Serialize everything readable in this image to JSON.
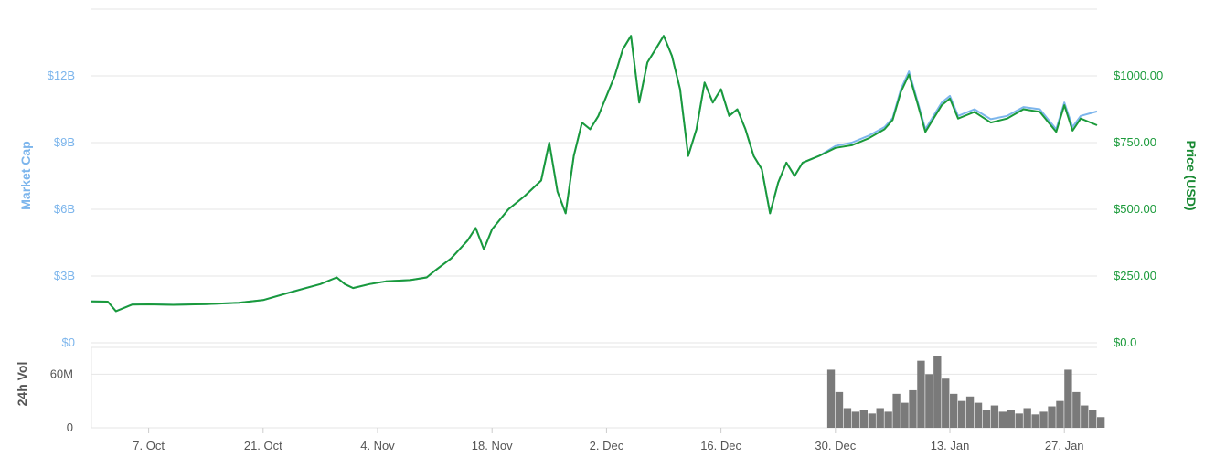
{
  "chart_data": {
    "type": "line",
    "title": "",
    "x_axis": {
      "type": "date",
      "range": [
        "2016-09-30",
        "2017-01-31"
      ],
      "ticks": [
        {
          "date": "2016-10-07",
          "label": "7. Oct"
        },
        {
          "date": "2016-10-21",
          "label": "21. Oct"
        },
        {
          "date": "2016-11-04",
          "label": "4. Nov"
        },
        {
          "date": "2016-11-18",
          "label": "18. Nov"
        },
        {
          "date": "2016-12-02",
          "label": "2. Dec"
        },
        {
          "date": "2016-12-16",
          "label": "16. Dec"
        },
        {
          "date": "2016-12-30",
          "label": "30. Dec"
        },
        {
          "date": "2017-01-13",
          "label": "13. Jan"
        },
        {
          "date": "2017-01-27",
          "label": "27. Jan"
        }
      ]
    },
    "y_axis_left": {
      "label": "Market Cap",
      "range": [
        0,
        15000000000
      ],
      "ticks": [
        {
          "value": 0,
          "label": "$0"
        },
        {
          "value": 3000000000,
          "label": "$3B"
        },
        {
          "value": 6000000000,
          "label": "$6B"
        },
        {
          "value": 9000000000,
          "label": "$9B"
        },
        {
          "value": 12000000000,
          "label": "$12B"
        }
      ]
    },
    "y_axis_right": {
      "label": "Price (USD)",
      "range": [
        0,
        1250
      ],
      "ticks": [
        {
          "value": 0,
          "label": "$0.0"
        },
        {
          "value": 250,
          "label": "$250.00"
        },
        {
          "value": 500,
          "label": "$500.00"
        },
        {
          "value": 750,
          "label": "$750.00"
        },
        {
          "value": 1000,
          "label": "$1000.00"
        }
      ]
    },
    "volume_axis": {
      "label": "24h Vol",
      "range": [
        0,
        90000000
      ],
      "ticks": [
        {
          "value": 0,
          "label": "0"
        },
        {
          "value": 60000000,
          "label": "60M"
        }
      ]
    },
    "grid": true,
    "legend": "none",
    "series": [
      {
        "key": "market_cap",
        "axis": "left",
        "color": "#7cb5ec",
        "points": [
          [
            "2016-09-30",
            1860000000
          ],
          [
            "2016-10-02",
            1850000000
          ],
          [
            "2016-10-03",
            1420000000
          ],
          [
            "2016-10-05",
            1720000000
          ],
          [
            "2016-10-07",
            1730000000
          ],
          [
            "2016-10-10",
            1710000000
          ],
          [
            "2016-10-14",
            1740000000
          ],
          [
            "2016-10-18",
            1800000000
          ],
          [
            "2016-10-21",
            1920000000
          ],
          [
            "2016-10-24",
            2240000000
          ],
          [
            "2016-10-26",
            2440000000
          ],
          [
            "2016-10-28",
            2640000000
          ],
          [
            "2016-10-30",
            2940000000
          ],
          [
            "2016-10-31",
            2640000000
          ],
          [
            "2016-11-01",
            2460000000
          ],
          [
            "2016-11-03",
            2640000000
          ],
          [
            "2016-11-05",
            2760000000
          ],
          [
            "2016-11-08",
            2820000000
          ],
          [
            "2016-11-10",
            2940000000
          ],
          [
            "2016-11-11",
            3240000000
          ],
          [
            "2016-11-13",
            3800000000
          ],
          [
            "2016-11-15",
            4600000000
          ],
          [
            "2016-11-16",
            5160000000
          ],
          [
            "2016-11-17",
            4200000000
          ],
          [
            "2016-11-18",
            5100000000
          ],
          [
            "2016-11-20",
            6000000000
          ],
          [
            "2016-11-22",
            6600000000
          ],
          [
            "2016-11-24",
            7300000000
          ],
          [
            "2016-11-25",
            9000000000
          ],
          [
            "2016-11-26",
            6800000000
          ],
          [
            "2016-11-27",
            5820000000
          ],
          [
            "2016-11-28",
            8400000000
          ],
          [
            "2016-11-29",
            9900000000
          ],
          [
            "2016-11-30",
            9600000000
          ],
          [
            "2016-12-01",
            10200000000
          ],
          [
            "2016-12-03",
            12000000000
          ],
          [
            "2016-12-04",
            13200000000
          ],
          [
            "2016-12-05",
            13800000000
          ],
          [
            "2016-12-06",
            10800000000
          ],
          [
            "2016-12-07",
            12600000000
          ],
          [
            "2016-12-08",
            13200000000
          ],
          [
            "2016-12-09",
            13800000000
          ],
          [
            "2016-12-10",
            12900000000
          ],
          [
            "2016-12-11",
            11400000000
          ],
          [
            "2016-12-12",
            8400000000
          ],
          [
            "2016-12-13",
            9600000000
          ],
          [
            "2016-12-14",
            11700000000
          ],
          [
            "2016-12-15",
            10800000000
          ],
          [
            "2016-12-16",
            11400000000
          ],
          [
            "2016-12-17",
            10200000000
          ],
          [
            "2016-12-18",
            10500000000
          ],
          [
            "2016-12-19",
            9600000000
          ],
          [
            "2016-12-20",
            8400000000
          ],
          [
            "2016-12-21",
            7800000000
          ],
          [
            "2016-12-22",
            5820000000
          ],
          [
            "2016-12-23",
            7200000000
          ],
          [
            "2016-12-24",
            8100000000
          ],
          [
            "2016-12-25",
            7500000000
          ],
          [
            "2016-12-26",
            8100000000
          ],
          [
            "2016-12-28",
            8400000000
          ],
          [
            "2016-12-30",
            8850000000
          ],
          [
            "2017-01-01",
            9000000000
          ],
          [
            "2017-01-03",
            9300000000
          ],
          [
            "2017-01-05",
            9700000000
          ],
          [
            "2017-01-06",
            10100000000
          ],
          [
            "2017-01-07",
            11400000000
          ],
          [
            "2017-01-08",
            12200000000
          ],
          [
            "2017-01-09",
            10900000000
          ],
          [
            "2017-01-10",
            9600000000
          ],
          [
            "2017-01-11",
            10200000000
          ],
          [
            "2017-01-12",
            10800000000
          ],
          [
            "2017-01-13",
            11100000000
          ],
          [
            "2017-01-14",
            10200000000
          ],
          [
            "2017-01-16",
            10500000000
          ],
          [
            "2017-01-18",
            10050000000
          ],
          [
            "2017-01-20",
            10200000000
          ],
          [
            "2017-01-22",
            10600000000
          ],
          [
            "2017-01-24",
            10500000000
          ],
          [
            "2017-01-26",
            9600000000
          ],
          [
            "2017-01-27",
            10800000000
          ],
          [
            "2017-01-28",
            9700000000
          ],
          [
            "2017-01-29",
            10200000000
          ],
          [
            "2017-01-31",
            10400000000
          ]
        ]
      },
      {
        "key": "price",
        "axis": "right",
        "color": "#1a9a3a",
        "points": [
          [
            "2016-09-30",
            155
          ],
          [
            "2016-10-02",
            154
          ],
          [
            "2016-10-03",
            118
          ],
          [
            "2016-10-05",
            143
          ],
          [
            "2016-10-07",
            144
          ],
          [
            "2016-10-10",
            142
          ],
          [
            "2016-10-14",
            145
          ],
          [
            "2016-10-18",
            150
          ],
          [
            "2016-10-21",
            160
          ],
          [
            "2016-10-24",
            186
          ],
          [
            "2016-10-26",
            203
          ],
          [
            "2016-10-28",
            220
          ],
          [
            "2016-10-30",
            245
          ],
          [
            "2016-10-31",
            220
          ],
          [
            "2016-11-01",
            205
          ],
          [
            "2016-11-03",
            220
          ],
          [
            "2016-11-05",
            230
          ],
          [
            "2016-11-08",
            235
          ],
          [
            "2016-11-10",
            245
          ],
          [
            "2016-11-11",
            270
          ],
          [
            "2016-11-13",
            316
          ],
          [
            "2016-11-15",
            383
          ],
          [
            "2016-11-16",
            430
          ],
          [
            "2016-11-17",
            350
          ],
          [
            "2016-11-18",
            425
          ],
          [
            "2016-11-20",
            500
          ],
          [
            "2016-11-22",
            550
          ],
          [
            "2016-11-24",
            608
          ],
          [
            "2016-11-25",
            750
          ],
          [
            "2016-11-26",
            566
          ],
          [
            "2016-11-27",
            485
          ],
          [
            "2016-11-28",
            700
          ],
          [
            "2016-11-29",
            825
          ],
          [
            "2016-11-30",
            800
          ],
          [
            "2016-12-01",
            850
          ],
          [
            "2016-12-03",
            1000
          ],
          [
            "2016-12-04",
            1100
          ],
          [
            "2016-12-05",
            1150
          ],
          [
            "2016-12-06",
            900
          ],
          [
            "2016-12-07",
            1050
          ],
          [
            "2016-12-08",
            1100
          ],
          [
            "2016-12-09",
            1150
          ],
          [
            "2016-12-10",
            1075
          ],
          [
            "2016-12-11",
            950
          ],
          [
            "2016-12-12",
            700
          ],
          [
            "2016-12-13",
            800
          ],
          [
            "2016-12-14",
            975
          ],
          [
            "2016-12-15",
            900
          ],
          [
            "2016-12-16",
            950
          ],
          [
            "2016-12-17",
            850
          ],
          [
            "2016-12-18",
            875
          ],
          [
            "2016-12-19",
            800
          ],
          [
            "2016-12-20",
            700
          ],
          [
            "2016-12-21",
            650
          ],
          [
            "2016-12-22",
            485
          ],
          [
            "2016-12-23",
            600
          ],
          [
            "2016-12-24",
            675
          ],
          [
            "2016-12-25",
            625
          ],
          [
            "2016-12-26",
            675
          ],
          [
            "2016-12-28",
            700
          ],
          [
            "2016-12-30",
            730
          ],
          [
            "2017-01-01",
            740
          ],
          [
            "2017-01-03",
            765
          ],
          [
            "2017-01-05",
            800
          ],
          [
            "2017-01-06",
            835
          ],
          [
            "2017-01-07",
            940
          ],
          [
            "2017-01-08",
            1005
          ],
          [
            "2017-01-09",
            900
          ],
          [
            "2017-01-10",
            790
          ],
          [
            "2017-01-11",
            840
          ],
          [
            "2017-01-12",
            890
          ],
          [
            "2017-01-13",
            915
          ],
          [
            "2017-01-14",
            840
          ],
          [
            "2017-01-16",
            865
          ],
          [
            "2017-01-18",
            825
          ],
          [
            "2017-01-20",
            840
          ],
          [
            "2017-01-22",
            875
          ],
          [
            "2017-01-24",
            865
          ],
          [
            "2017-01-26",
            790
          ],
          [
            "2017-01-27",
            890
          ],
          [
            "2017-01-28",
            795
          ],
          [
            "2017-01-29",
            840
          ],
          [
            "2017-01-31",
            815
          ]
        ]
      }
    ],
    "volume": {
      "color": "#7a7a7a",
      "start_date": "2016-12-29",
      "points": [
        [
          "2016-12-29",
          65000000
        ],
        [
          "2016-12-30",
          40000000
        ],
        [
          "2016-12-31",
          22000000
        ],
        [
          "2017-01-01",
          18000000
        ],
        [
          "2017-01-02",
          20000000
        ],
        [
          "2017-01-03",
          16000000
        ],
        [
          "2017-01-04",
          22000000
        ],
        [
          "2017-01-05",
          18000000
        ],
        [
          "2017-01-06",
          38000000
        ],
        [
          "2017-01-07",
          28000000
        ],
        [
          "2017-01-08",
          42000000
        ],
        [
          "2017-01-09",
          75000000
        ],
        [
          "2017-01-10",
          60000000
        ],
        [
          "2017-01-11",
          80000000
        ],
        [
          "2017-01-12",
          55000000
        ],
        [
          "2017-01-13",
          38000000
        ],
        [
          "2017-01-14",
          30000000
        ],
        [
          "2017-01-15",
          35000000
        ],
        [
          "2017-01-16",
          28000000
        ],
        [
          "2017-01-17",
          20000000
        ],
        [
          "2017-01-18",
          25000000
        ],
        [
          "2017-01-19",
          18000000
        ],
        [
          "2017-01-20",
          20000000
        ],
        [
          "2017-01-21",
          16000000
        ],
        [
          "2017-01-22",
          22000000
        ],
        [
          "2017-01-23",
          15000000
        ],
        [
          "2017-01-24",
          18000000
        ],
        [
          "2017-01-25",
          24000000
        ],
        [
          "2017-01-26",
          30000000
        ],
        [
          "2017-01-27",
          65000000
        ],
        [
          "2017-01-28",
          40000000
        ],
        [
          "2017-01-29",
          25000000
        ],
        [
          "2017-01-30",
          20000000
        ],
        [
          "2017-01-31",
          12000000
        ]
      ]
    }
  }
}
